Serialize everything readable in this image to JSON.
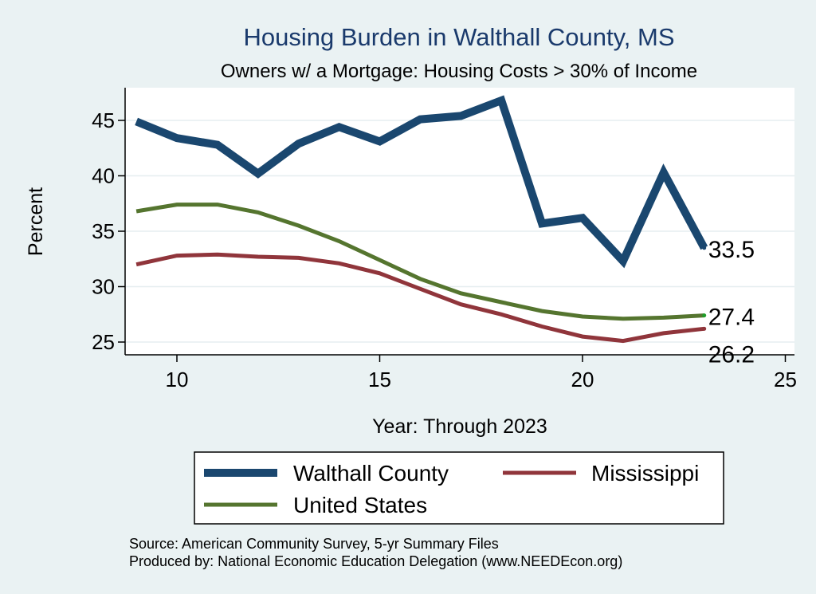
{
  "chart_data": {
    "type": "line",
    "title": "Housing Burden in Walthall County, MS",
    "subtitle": "Owners w/ a Mortgage: Housing Costs > 30% of Income",
    "xlabel": "Year: Through 2023",
    "ylabel": "Percent",
    "xlim": [
      9,
      25
    ],
    "ylim": [
      24,
      47.5
    ],
    "xticks": [
      10,
      15,
      20,
      25
    ],
    "yticks": [
      25,
      30,
      35,
      40,
      45
    ],
    "grid": true,
    "legend_position": "bottom",
    "series": [
      {
        "name": "Walthall County",
        "color": "#1a476f",
        "x": [
          9,
          10,
          11,
          12,
          13,
          14,
          15,
          16,
          17,
          18,
          19,
          20,
          21,
          22,
          23
        ],
        "values": [
          44.9,
          43.4,
          42.8,
          40.2,
          42.9,
          44.4,
          43.1,
          45.1,
          45.4,
          46.8,
          35.7,
          36.2,
          32.3,
          40.3,
          33.5
        ]
      },
      {
        "name": "Mississippi",
        "color": "#90353b",
        "x": [
          9,
          10,
          11,
          12,
          13,
          14,
          15,
          16,
          17,
          18,
          19,
          20,
          21,
          22,
          23
        ],
        "values": [
          32.0,
          32.8,
          32.9,
          32.7,
          32.6,
          32.1,
          31.2,
          29.8,
          28.4,
          27.5,
          26.4,
          25.5,
          25.1,
          25.8,
          26.2
        ]
      },
      {
        "name": "United States",
        "color": "#55752f",
        "x": [
          9,
          10,
          11,
          12,
          13,
          14,
          15,
          16,
          17,
          18,
          19,
          20,
          21,
          22,
          23
        ],
        "values": [
          36.8,
          37.4,
          37.4,
          36.7,
          35.5,
          34.1,
          32.4,
          30.7,
          29.4,
          28.6,
          27.8,
          27.3,
          27.1,
          27.2,
          27.4
        ]
      }
    ],
    "end_labels": [
      {
        "series": "Walthall County",
        "text": "33.5"
      },
      {
        "series": "United States",
        "text": "27.4"
      },
      {
        "series": "Mississippi",
        "text": "26.2"
      }
    ],
    "notes": [
      "Source: American Community Survey, 5-yr Summary Files",
      "Produced by: National Economic Education Delegation (www.NEEDEcon.org)"
    ]
  }
}
